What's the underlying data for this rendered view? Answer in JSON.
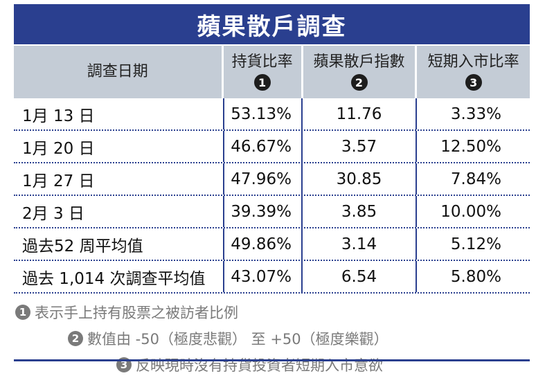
{
  "title": "蘋果散戶調查",
  "header": {
    "date_col": "調查日期",
    "col1": {
      "label": "持貨比率",
      "num": "1"
    },
    "col2": {
      "label": "蘋果散戶指數",
      "num": "2"
    },
    "col3": {
      "label": "短期入市比率",
      "num": "3"
    }
  },
  "rows": [
    {
      "date": "1月 13 日",
      "holding": "53.13%",
      "index": "11.76",
      "short_term": "3.33%"
    },
    {
      "date": "1月 20 日",
      "holding": "46.67%",
      "index": "3.57",
      "short_term": "12.50%"
    },
    {
      "date": "1月 27 日",
      "holding": "47.96%",
      "index": "30.85",
      "short_term": "7.84%"
    },
    {
      "date": "2月 3 日",
      "holding": "39.39%",
      "index": "3.85",
      "short_term": "10.00%"
    },
    {
      "date": "過去52 周平均值",
      "holding": "49.86%",
      "index": "3.14",
      "short_term": "5.12%"
    },
    {
      "date": "過去 1,014 次調查平均值",
      "holding": "43.07%",
      "index": "6.54",
      "short_term": "5.80%"
    }
  ],
  "notes": [
    {
      "num": "1",
      "text": "表示手上持有股票之被訪者比例"
    },
    {
      "num": "2",
      "text": "數值由 -50（極度悲觀） 至 +50（極度樂觀）"
    },
    {
      "num": "3",
      "text": "反映現時沒有持貨投資者短期入市意欲"
    }
  ],
  "colors": {
    "title_bg": "#2a3f8f",
    "header_bg": "#c4ccd6",
    "rule": "#2a3f8f",
    "note_text": "#7a7a7a"
  }
}
